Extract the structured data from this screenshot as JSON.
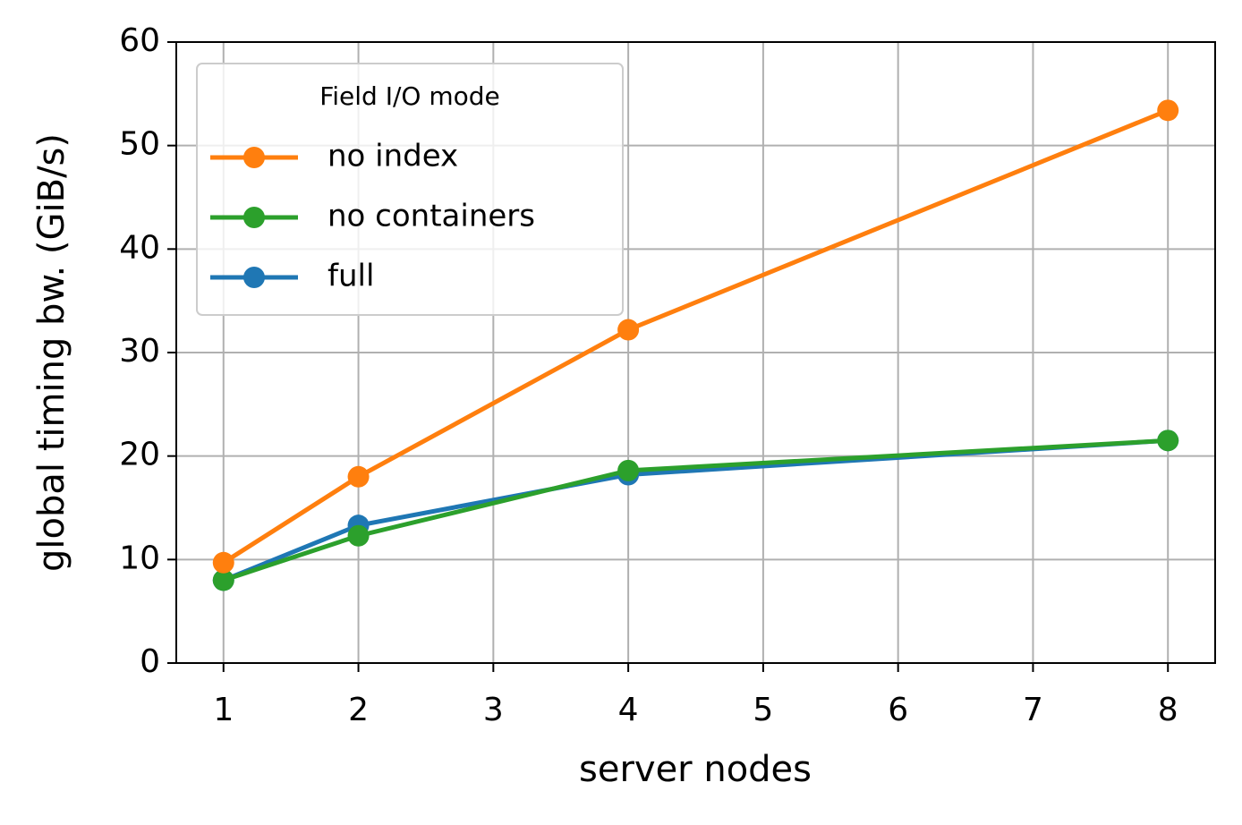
{
  "chart_data": {
    "type": "line",
    "x_label": "server nodes",
    "y_label": "global timing bw. (GiB/s)",
    "legend_title": "Field I/O mode",
    "legend_position": "upper left",
    "grid": true,
    "x": [
      1,
      2,
      4,
      8
    ],
    "xlim": [
      0.65,
      8.35
    ],
    "xticks": [
      1,
      2,
      3,
      4,
      5,
      6,
      7,
      8
    ],
    "ylim": [
      0,
      60
    ],
    "yticks": [
      0,
      10,
      20,
      30,
      40,
      50,
      60
    ],
    "series": [
      {
        "name": "no index",
        "color": "#ff7f0e",
        "values": [
          9.7,
          18.0,
          32.2,
          53.4
        ]
      },
      {
        "name": "no containers",
        "color": "#2ca02c",
        "values": [
          8.0,
          12.3,
          18.6,
          21.5
        ]
      },
      {
        "name": "full",
        "color": "#1f77b4",
        "values": [
          8.0,
          13.3,
          18.2,
          21.5
        ]
      }
    ]
  }
}
